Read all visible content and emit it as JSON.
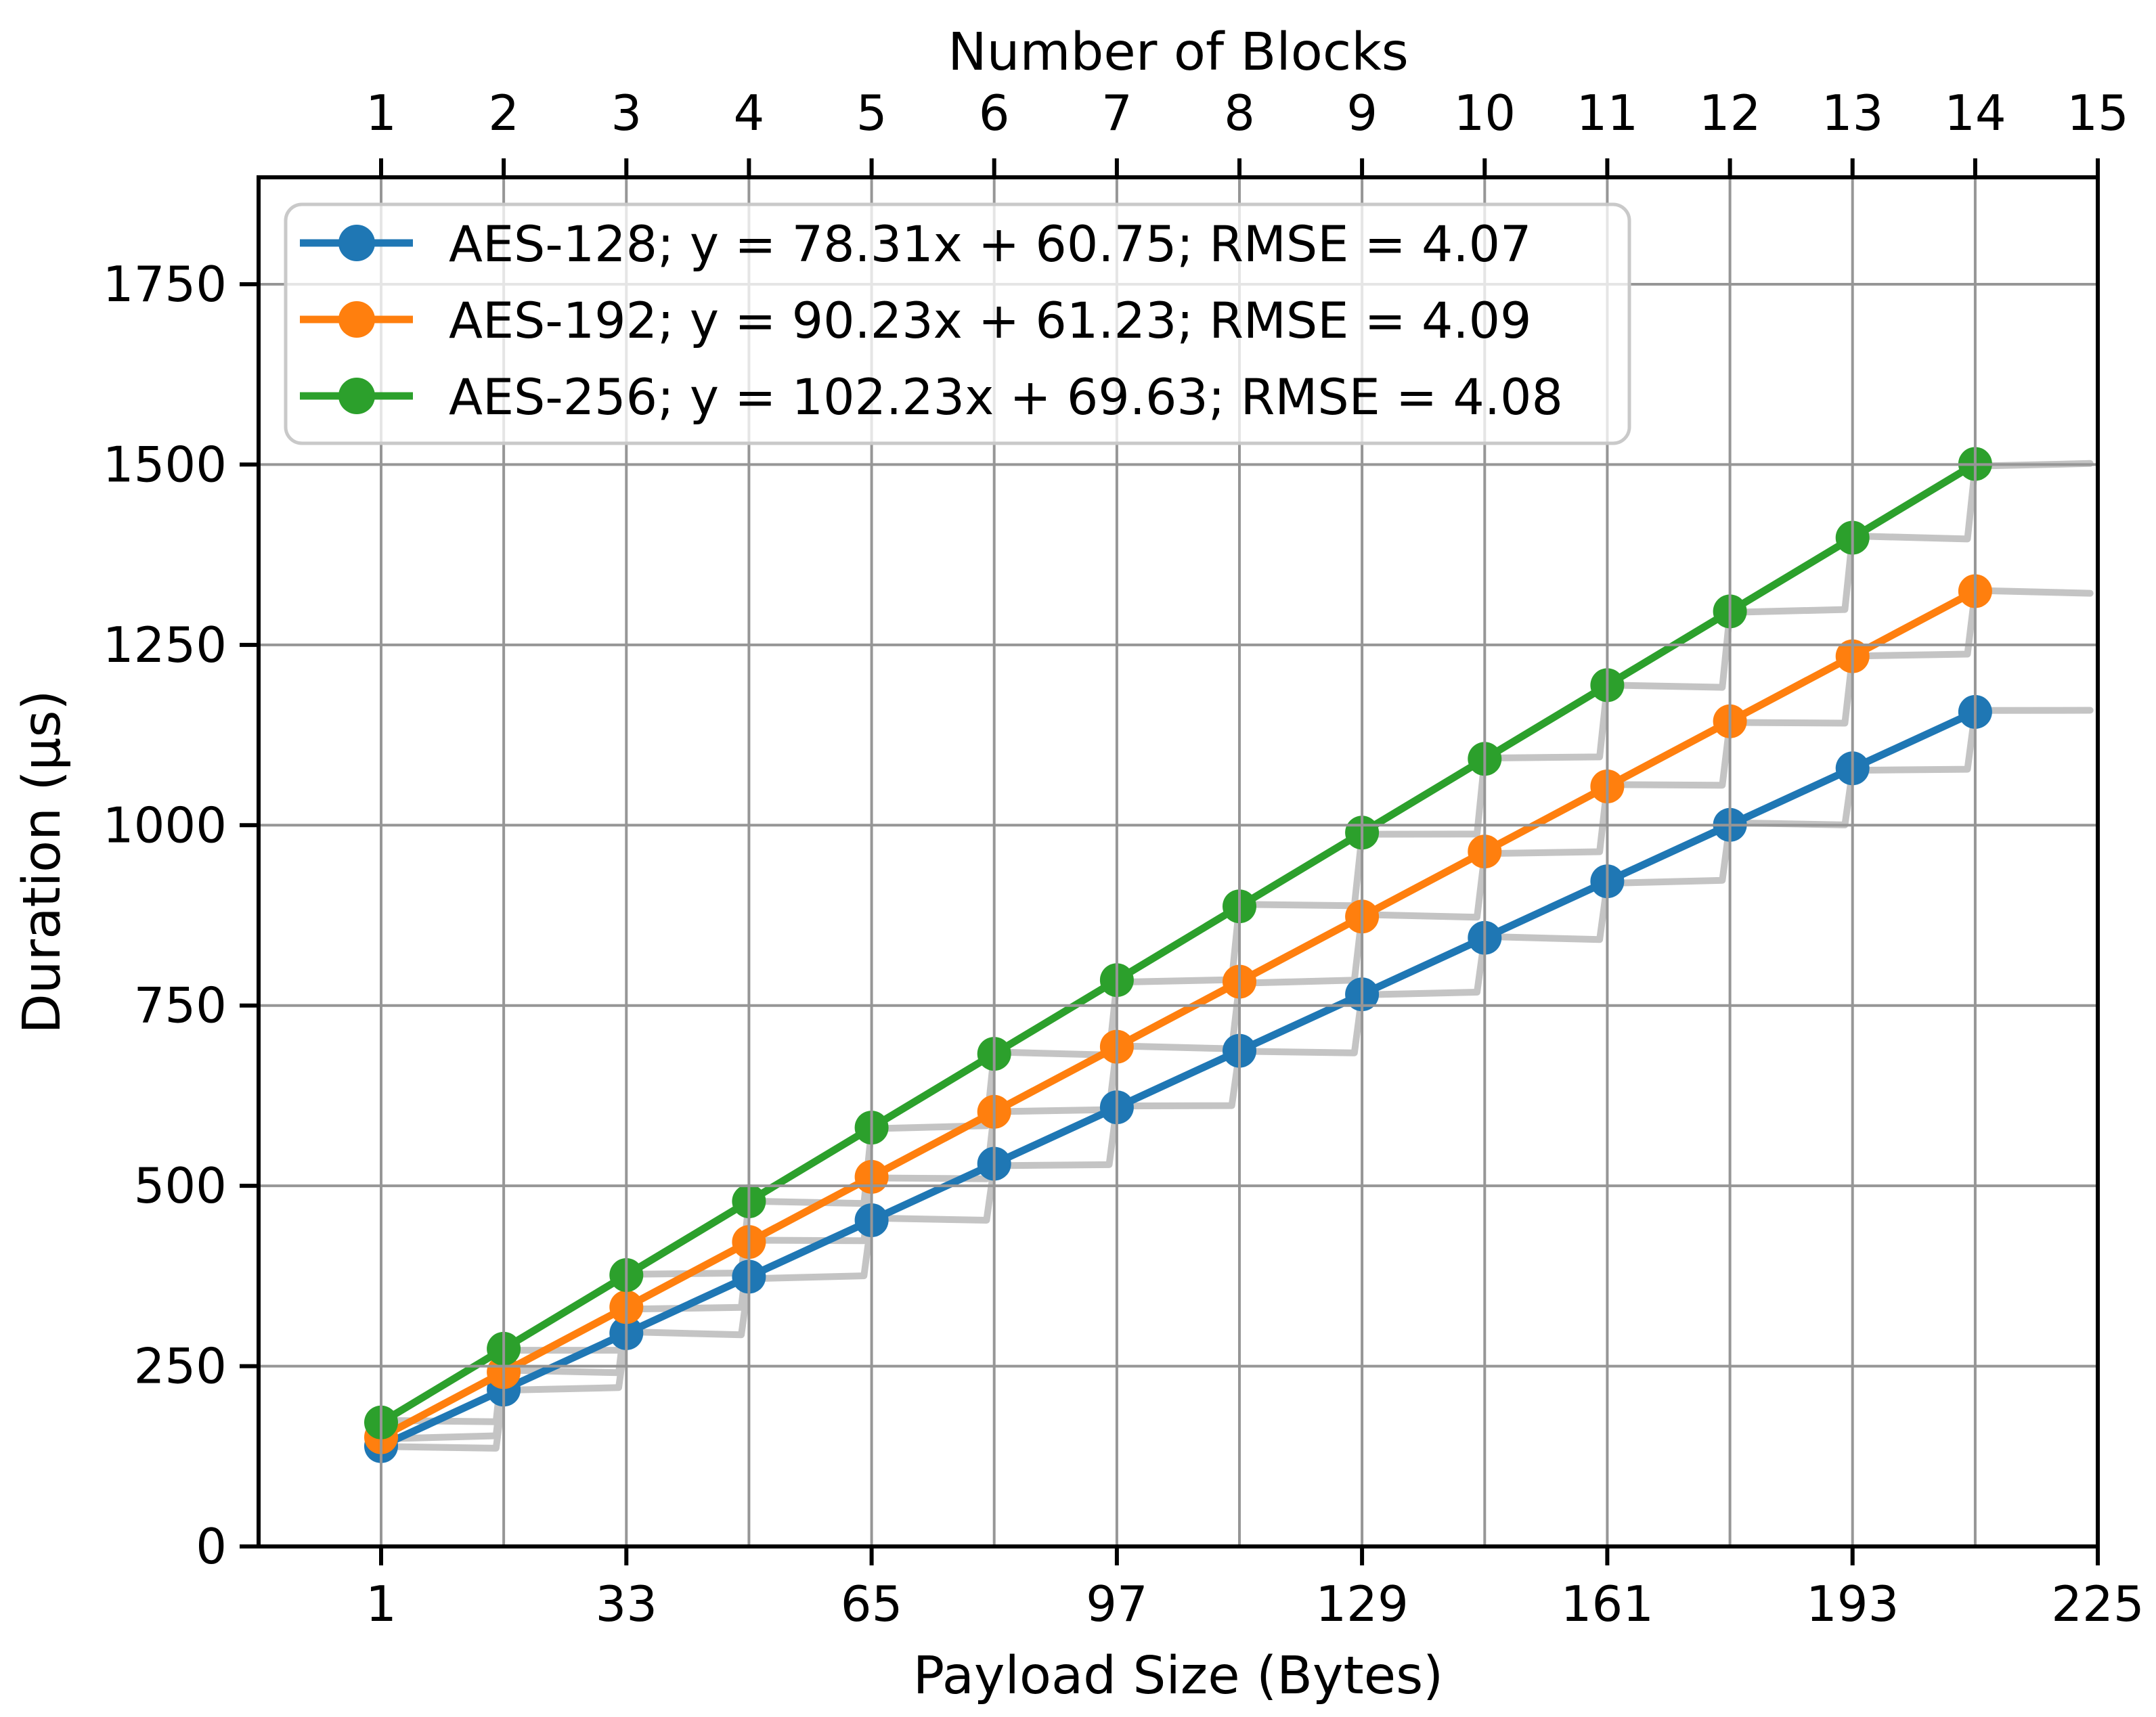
{
  "chart_data": {
    "type": "line",
    "title": "",
    "top_axis": {
      "label": "Number of Blocks",
      "ticks": [
        1,
        2,
        3,
        4,
        5,
        6,
        7,
        8,
        9,
        10,
        11,
        12,
        13,
        14,
        15
      ]
    },
    "x_axis": {
      "label": "Payload Size (Bytes)",
      "ticks": [
        1,
        33,
        65,
        97,
        129,
        161,
        193,
        225
      ],
      "range": [
        -15,
        225
      ]
    },
    "y_axis": {
      "label": "Duration (μs)",
      "ticks": [
        0,
        250,
        500,
        750,
        1000,
        1250,
        1500,
        1750
      ],
      "range": [
        0,
        1898
      ]
    },
    "grid": true,
    "legend_position": "upper left",
    "block_size_bytes": 16,
    "series": [
      {
        "name": "AES-128",
        "color": "#1f77b4",
        "slope": 78.31,
        "intercept": 60.75,
        "rmse": 4.07,
        "legend_label": "AES-128; y = 78.31x + 60.75; RMSE = 4.07",
        "blocks": [
          1,
          2,
          3,
          4,
          5,
          6,
          7,
          8,
          9,
          10,
          11,
          12,
          13,
          14
        ],
        "marker_payloads": [
          1,
          17,
          33,
          49,
          65,
          81,
          97,
          113,
          129,
          145,
          161,
          177,
          193,
          209
        ],
        "marker_durations": [
          139.06,
          217.37,
          295.68,
          373.99,
          452.3,
          530.61,
          608.92,
          687.23,
          765.54,
          843.85,
          922.16,
          1000.47,
          1078.78,
          1157.09
        ]
      },
      {
        "name": "AES-192",
        "color": "#ff7f0e",
        "slope": 90.23,
        "intercept": 61.23,
        "rmse": 4.09,
        "legend_label": "AES-192; y = 90.23x + 61.23; RMSE = 4.09",
        "blocks": [
          1,
          2,
          3,
          4,
          5,
          6,
          7,
          8,
          9,
          10,
          11,
          12,
          13,
          14
        ],
        "marker_payloads": [
          1,
          17,
          33,
          49,
          65,
          81,
          97,
          113,
          129,
          145,
          161,
          177,
          193,
          209
        ],
        "marker_durations": [
          151.46,
          241.69,
          331.92,
          422.15,
          512.38,
          602.61,
          692.84,
          783.07,
          873.3,
          963.53,
          1053.76,
          1143.99,
          1234.22,
          1324.45
        ]
      },
      {
        "name": "AES-256",
        "color": "#2ca02c",
        "slope": 102.23,
        "intercept": 69.63,
        "rmse": 4.08,
        "legend_label": "AES-256; y = 102.23x + 69.63; RMSE = 4.08",
        "blocks": [
          1,
          2,
          3,
          4,
          5,
          6,
          7,
          8,
          9,
          10,
          11,
          12,
          13,
          14
        ],
        "marker_payloads": [
          1,
          17,
          33,
          49,
          65,
          81,
          97,
          113,
          129,
          145,
          161,
          177,
          193,
          209
        ],
        "marker_durations": [
          171.86,
          274.09,
          376.32,
          478.55,
          580.78,
          683.01,
          785.24,
          887.47,
          989.7,
          1091.93,
          1194.16,
          1296.39,
          1398.62,
          1500.85
        ]
      }
    ],
    "raw_step_series": {
      "description": "measured duration staircase; duration steps up at every 16-byte block boundary",
      "color": "#c4c4c4",
      "payload_start": 1,
      "payload_end": 224,
      "noise_amplitude": 3
    }
  },
  "style_colors": {
    "grid": "#969696",
    "spine": "#000000",
    "legend_border": "#c9c9c9",
    "legend_fill": "#ffffff"
  }
}
